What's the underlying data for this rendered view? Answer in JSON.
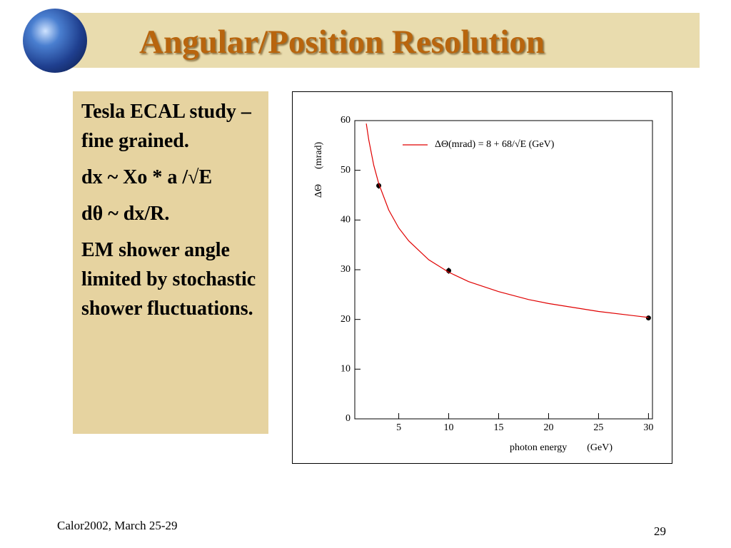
{
  "header": {
    "title": "Angular/Position Resolution"
  },
  "text_box": {
    "paragraphs": [
      "Tesla ECAL study – fine grained.",
      "dx ~ Xo * a /√E",
      "dθ ~ dx/R.",
      "EM shower angle limited by stochastic shower fluctuations."
    ]
  },
  "chart_data": {
    "type": "scatter",
    "ylabel": "ΔΘ      (mrad)",
    "xlabel": "photon energy        (GeV)",
    "xlim": [
      0.6,
      30.4
    ],
    "ylim": [
      0,
      60
    ],
    "xticks": [
      5,
      10,
      15,
      20,
      25,
      30
    ],
    "yticks": [
      0,
      10,
      20,
      30,
      40,
      50,
      60
    ],
    "grid": false,
    "legend": "top-right",
    "series": [
      {
        "color": "#000000",
        "x": [
          3,
          10,
          30
        ],
        "values": [
          46.9,
          29.8,
          20.3
        ],
        "errors": [
          0.6,
          0.6,
          0.3
        ]
      },
      {
        "name": "ΔΘ(mrad) = 8 + 68/√E (GeV)",
        "kind": "line",
        "color": "#e00000",
        "x": [
          1.75,
          2,
          2.5,
          3,
          4,
          5,
          6,
          8,
          10,
          12,
          15,
          18,
          20,
          25,
          30
        ],
        "values": [
          59.4,
          56.1,
          51.0,
          47.3,
          42.0,
          38.4,
          35.8,
          32.0,
          29.5,
          27.6,
          25.6,
          24.0,
          23.2,
          21.6,
          20.4
        ]
      }
    ]
  },
  "footer": {
    "left": "Calor2002, March 25-29",
    "page": "29"
  }
}
